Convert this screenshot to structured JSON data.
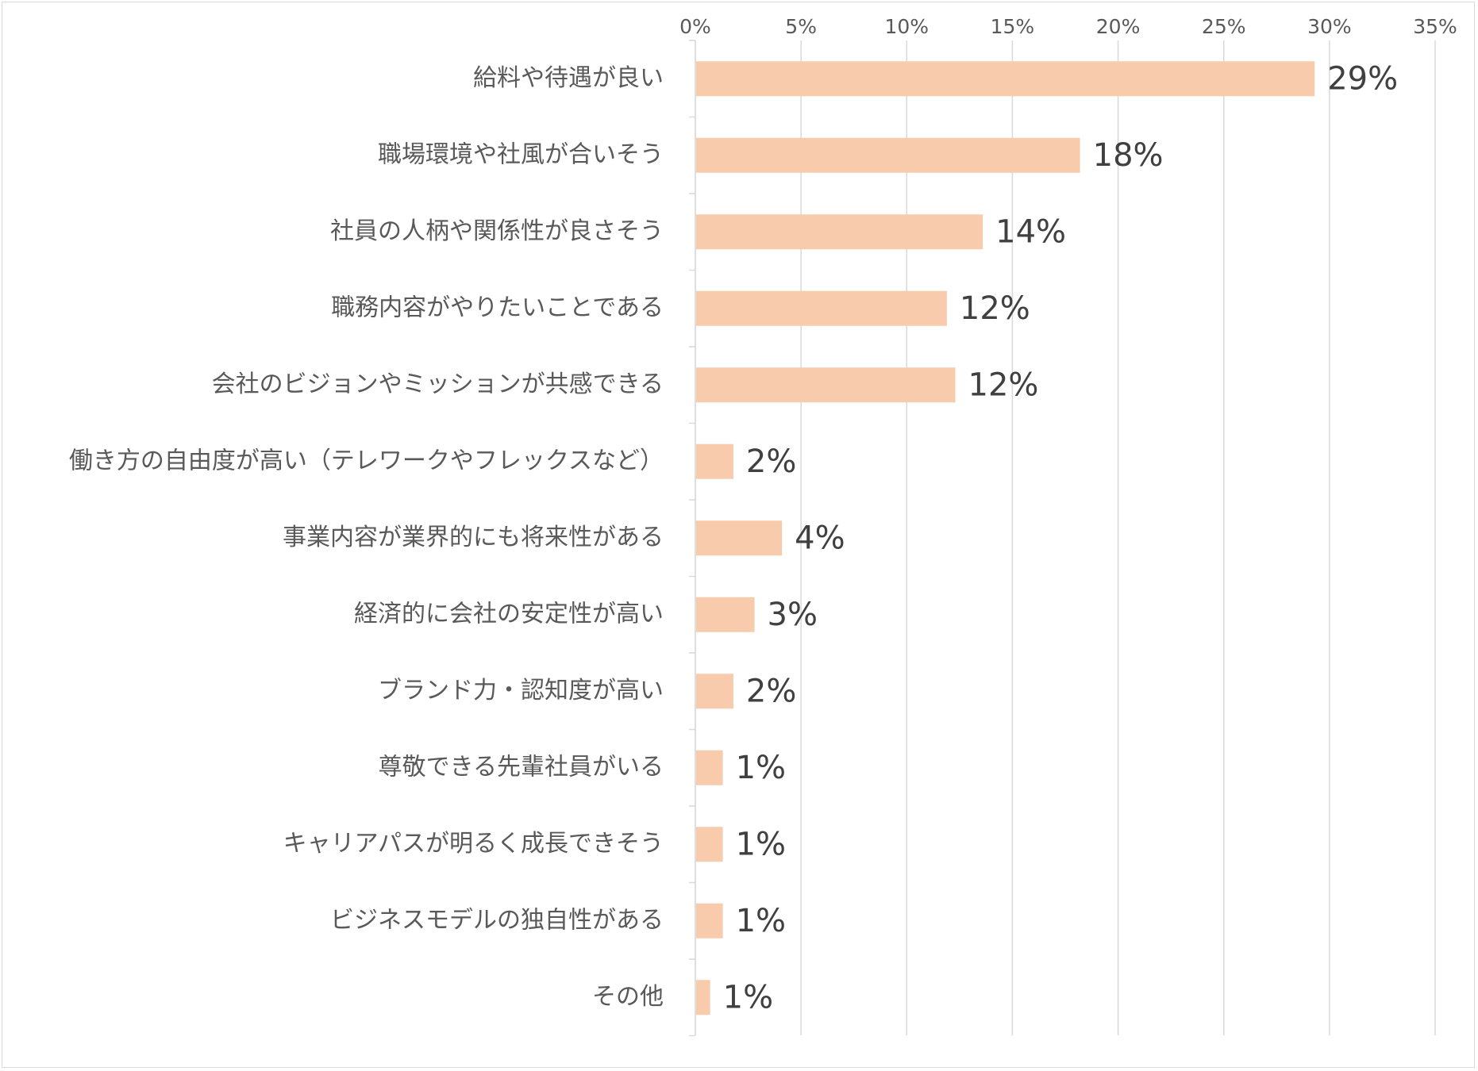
{
  "chart_data": {
    "type": "bar",
    "orientation": "horizontal",
    "categories": [
      "給料や待遇が良い",
      "職場環境や社風が合いそう",
      "社員の人柄や関係性が良さそう",
      "職務内容がやりたいことである",
      "会社のビジョンやミッションが共感できる",
      "働き方の自由度が高い（テレワークやフレックスなど）",
      "事業内容が業界的にも将来性がある",
      "経済的に会社の安定性が高い",
      "ブランド力・認知度が高い",
      "尊敬できる先輩社員がいる",
      "キャリアパスが明るく成長できそう",
      "ビジネスモデルの独自性がある",
      "その他"
    ],
    "values": [
      29.3,
      18.2,
      13.6,
      11.9,
      12.3,
      1.8,
      4.1,
      2.8,
      1.8,
      1.3,
      1.3,
      1.3,
      0.7
    ],
    "data_labels": [
      "29%",
      "18%",
      "14%",
      "12%",
      "12%",
      "2%",
      "4%",
      "3%",
      "2%",
      "1%",
      "1%",
      "1%",
      "1%"
    ],
    "x_ticks": [
      "0%",
      "5%",
      "10%",
      "15%",
      "20%",
      "25%",
      "30%",
      "35%"
    ],
    "xlim": [
      0,
      35
    ],
    "x_axis_position": "top",
    "grid": true,
    "legend": "none",
    "title": "",
    "xlabel": "",
    "ylabel": ""
  },
  "colors": {
    "bar": "#f8cbad",
    "grid": "#d9d9d9",
    "tick_text": "#595959",
    "category_text": "#595959",
    "data_label_text": "#404040",
    "background": "#ffffff"
  }
}
